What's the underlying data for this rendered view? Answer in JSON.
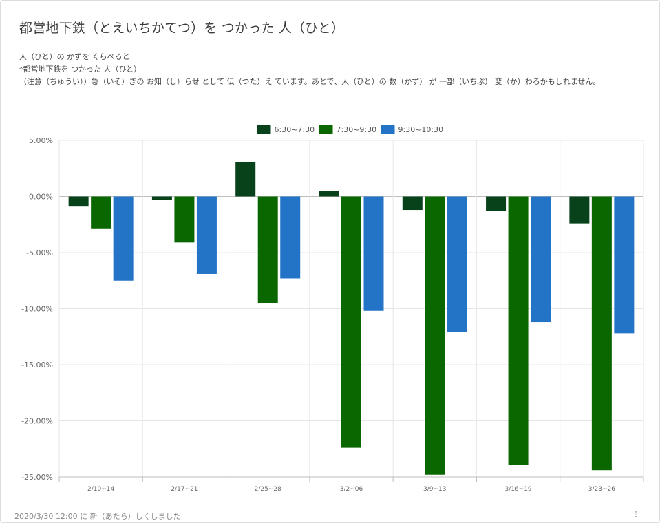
{
  "header": {
    "title": "都営地下鉄（とえいちかてつ）を つかった 人（ひと）"
  },
  "description": {
    "line1": "人（ひと）の かずを くらべると",
    "line2": "*都営地下鉄を つかった 人（ひと）",
    "line3": "（注意（ちゅうい））急（いそ）ぎの お知（し）らせ として 伝（つた）え ています。あとで、人（ひと）の 数（かず） が 一部（いちぶ） 変（か）わるかもしれません。"
  },
  "footer": {
    "text": "2020/3/30 12:00 に 新（あたら）しくしました"
  },
  "colors": {
    "series1": "#07421b",
    "series2": "#0a6700",
    "series3": "#2374c6",
    "grid": "#e6e6e6",
    "axis": "#bdbdbd",
    "tick_text": "#666666"
  },
  "chart_data": {
    "type": "bar",
    "categories": [
      "2/10~14",
      "2/17~21",
      "2/25~28",
      "3/2~06",
      "3/9~13",
      "3/16~19",
      "3/23~26"
    ],
    "series": [
      {
        "name": "6:30~7:30",
        "values": [
          -0.9,
          -0.3,
          3.1,
          0.5,
          -1.2,
          -1.3,
          -2.4
        ]
      },
      {
        "name": "7:30~9:30",
        "values": [
          -2.9,
          -4.1,
          -9.5,
          -22.4,
          -24.8,
          -23.9,
          -24.4
        ]
      },
      {
        "name": "9:30~10:30",
        "values": [
          -7.5,
          -6.9,
          -7.3,
          -10.2,
          -12.1,
          -11.2,
          -12.2
        ]
      }
    ],
    "y_ticks": [
      "5.00%",
      "0.00%",
      "-5.00%",
      "-10.00%",
      "-15.00%",
      "-20.00%",
      "-25.00%"
    ],
    "ylim": [
      -25,
      5
    ],
    "y_unit": "%",
    "legend_position": "top",
    "grid": true
  }
}
